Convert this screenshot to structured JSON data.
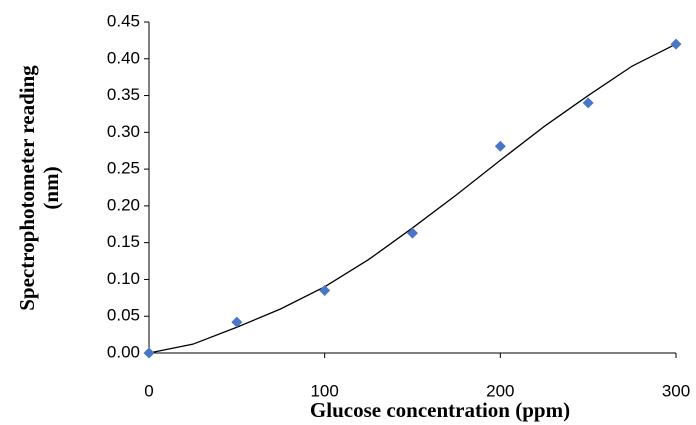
{
  "chart_data": {
    "type": "scatter",
    "xlabel": "Glucose concentration (ppm)",
    "ylabel": [
      "Spectrophotometer reading",
      "(nm)"
    ],
    "xlim": [
      0,
      300
    ],
    "xticks": [
      0,
      100,
      200,
      300
    ],
    "ylim": [
      0,
      0.45
    ],
    "yticks": [
      {
        "value": 0,
        "label": "0.00"
      },
      {
        "value": 0.05,
        "label": "0.05"
      },
      {
        "value": 0.1,
        "label": "0.10"
      },
      {
        "value": 0.15,
        "label": "0.15"
      },
      {
        "value": 0.2,
        "label": "0.20"
      },
      {
        "value": 0.25,
        "label": "0.25"
      },
      {
        "value": 0.3,
        "label": "0.30"
      },
      {
        "value": 0.35,
        "label": "0.35"
      },
      {
        "value": 0.4,
        "label": "0.40"
      },
      {
        "value": 0.45,
        "label": "0.45"
      }
    ],
    "grid": false,
    "series": [
      {
        "type": "scatter",
        "marker": "diamond",
        "color": "#4a76c6",
        "x": [
          0,
          50,
          100,
          150,
          200,
          250,
          300
        ],
        "values": [
          0,
          0.042,
          0.085,
          0.163,
          0.281,
          0.34,
          0.42
        ]
      },
      {
        "type": "line",
        "color": "#000000",
        "x": [
          0,
          25,
          50,
          75,
          100,
          125,
          150,
          175,
          200,
          225,
          250,
          275,
          300
        ],
        "values": [
          0,
          0.012,
          0.035,
          0.06,
          0.09,
          0.127,
          0.17,
          0.215,
          0.262,
          0.308,
          0.35,
          0.39,
          0.42
        ]
      }
    ]
  }
}
